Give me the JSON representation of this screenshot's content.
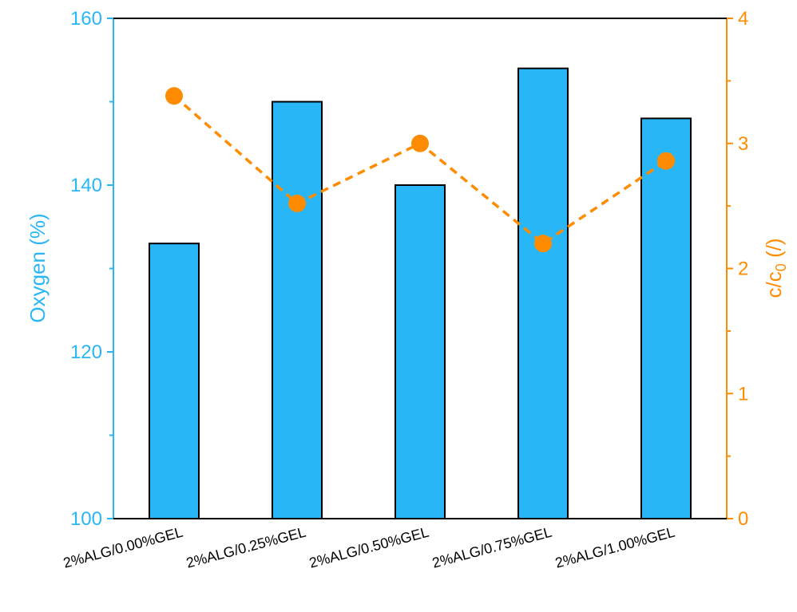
{
  "chart_data": {
    "type": "bar",
    "categories": [
      "2%ALG/0.00%GEL",
      "2%ALG/0.25%GEL",
      "2%ALG/0.50%GEL",
      "2%ALG/0.75%GEL",
      "2%ALG/1.00%GEL"
    ],
    "series": [
      {
        "values": [
          133,
          150,
          140,
          154,
          148
        ],
        "axis": "left",
        "type": "bar",
        "color": "#29b6f6"
      },
      {
        "values": [
          3.38,
          2.52,
          3.0,
          2.2,
          2.86
        ],
        "axis": "right",
        "type": "line",
        "style": "dashed",
        "marker": "circle",
        "color": "#ff8c00"
      }
    ],
    "ylabel": "Oxygen (%)",
    "y2label": {
      "main": "c/c",
      "sub": "0",
      "unit": " (/)"
    },
    "ylim": [
      100,
      160
    ],
    "y2lim": [
      0,
      4
    ],
    "yticks": [
      "100",
      "120",
      "140",
      "160"
    ],
    "y2ticks": [
      "0",
      "1",
      "2",
      "3",
      "4"
    ],
    "colors": {
      "left_axis": "#29b6f6",
      "right_axis": "#ff8c00",
      "bar_fill": "#29b6f6",
      "bar_edge": "#000000"
    },
    "grid": false
  }
}
